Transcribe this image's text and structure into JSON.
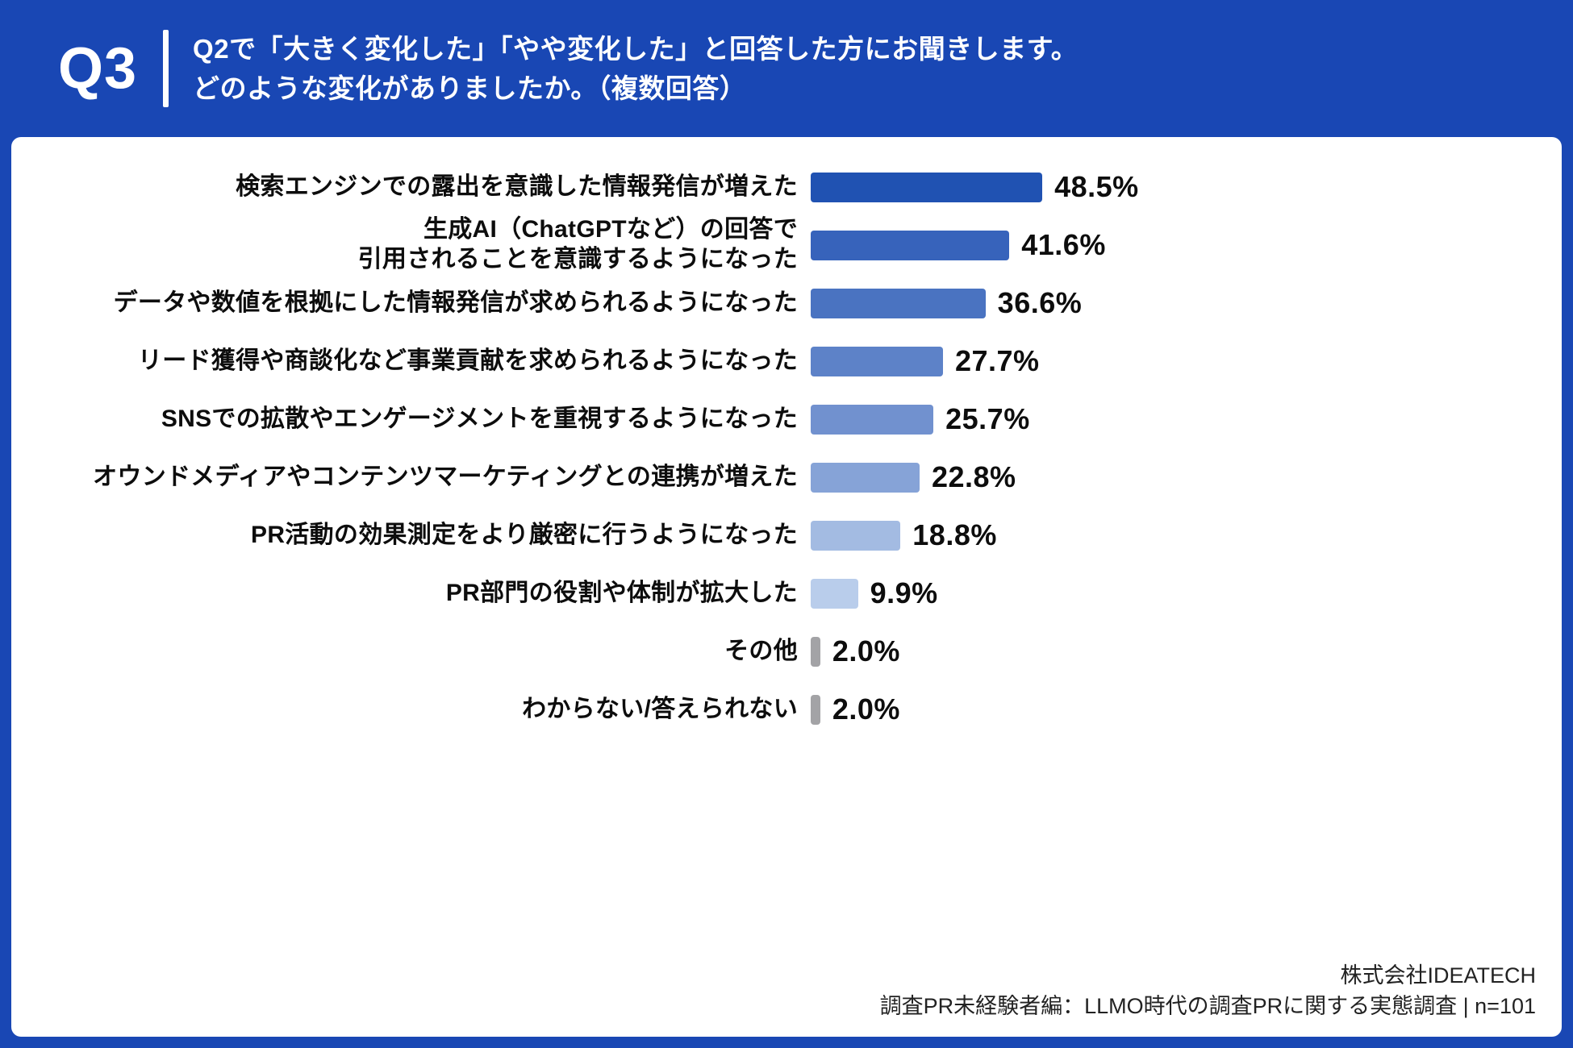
{
  "header": {
    "question_number": "Q3",
    "question_line1": "Q2で「大きく変化した」「やや変化した」と回答した方にお聞きします。",
    "question_line2": "どのような変化がありましたか。（複数回答）"
  },
  "chart_data": {
    "type": "bar",
    "orientation": "horizontal",
    "unit": "%",
    "title": "Q2で「大きく変化した」「やや変化した」と回答した方にお聞きします。どのような変化がありましたか。（複数回答）",
    "categories": [
      "検索エンジンでの露出を意識した情報発信が増えた",
      "生成AI（ChatGPTなど）の回答で\n引用されることを意識するようになった",
      "データや数値を根拠にした情報発信が求められるようになった",
      "リード獲得や商談化など事業貢献を求められるようになった",
      "SNSでの拡散やエンゲージメントを重視するようになった",
      "オウンドメディアやコンテンツマーケティングとの連携が増えた",
      "PR活動の効果測定をより厳密に行うようになった",
      "PR部門の役割や体制が拡大した",
      "その他",
      "わからない/答えられない"
    ],
    "values": [
      48.5,
      41.6,
      36.6,
      27.7,
      25.7,
      22.8,
      18.8,
      9.9,
      2.0,
      2.0
    ],
    "value_labels": [
      "48.5%",
      "41.6%",
      "36.6%",
      "27.7%",
      "25.7%",
      "22.8%",
      "18.8%",
      "9.9%",
      "2.0%",
      "2.0%"
    ],
    "bar_colors": [
      "#2052b2",
      "#3763bb",
      "#4a73c1",
      "#5d82c8",
      "#7191cf",
      "#86a3d7",
      "#a3bbe2",
      "#b9cdeb",
      "#a3a3a6",
      "#a3a3a6"
    ],
    "xlim": [
      0,
      50
    ],
    "grid": false,
    "legend": "none",
    "accent_color": "#1947b4"
  },
  "footer": {
    "company": "株式会社IDEATECH",
    "source": "調査PR未経験者編：LLMO時代の調査PRに関する実態調査 | n=101"
  }
}
